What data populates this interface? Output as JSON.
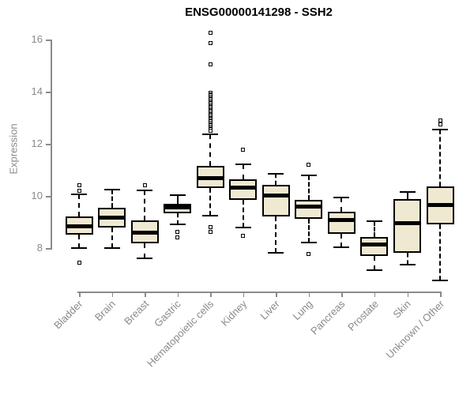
{
  "chart_data": {
    "type": "boxplot",
    "title": "ENSG00000141298 - SSH2",
    "ylabel": "Expression",
    "xlabel": "",
    "yticks": [
      8,
      10,
      12,
      14,
      16
    ],
    "ylim": [
      6.6,
      16.5
    ],
    "grid": false,
    "legend": "none",
    "categories": [
      "Bladder",
      "Brain",
      "Breast",
      "Gastric",
      "Hematopoietic cells",
      "Kidney",
      "Liver",
      "Lung",
      "Pancreas",
      "Prostate",
      "Skin",
      "Unknown / Other"
    ],
    "series": [
      {
        "name": "Bladder",
        "q1": 8.52,
        "median": 8.83,
        "q3": 9.2,
        "whisker_low": 8.0,
        "whisker_high": 10.06,
        "outliers": [
          10.4,
          10.2,
          7.45
        ]
      },
      {
        "name": "Brain",
        "q1": 8.8,
        "median": 9.18,
        "q3": 9.54,
        "whisker_low": 7.99,
        "whisker_high": 10.24,
        "outliers": []
      },
      {
        "name": "Breast",
        "q1": 8.17,
        "median": 8.58,
        "q3": 9.06,
        "whisker_low": 7.62,
        "whisker_high": 10.21,
        "outliers": [
          10.4
        ]
      },
      {
        "name": "Gastric",
        "q1": 9.33,
        "median": 9.56,
        "q3": 9.69,
        "whisker_low": 8.9,
        "whisker_high": 10.04,
        "outliers": [
          8.63,
          8.4
        ]
      },
      {
        "name": "Hematopoietic cells",
        "q1": 10.29,
        "median": 10.68,
        "q3": 11.15,
        "whisker_low": 9.23,
        "whisker_high": 12.37,
        "outliers": [
          16.25,
          15.85,
          15.05,
          13.95,
          13.9,
          13.85,
          13.8,
          13.75,
          13.7,
          13.65,
          13.6,
          13.55,
          13.5,
          13.45,
          13.4,
          13.35,
          13.3,
          13.25,
          13.2,
          13.15,
          13.1,
          13.05,
          13.0,
          12.95,
          12.9,
          12.85,
          12.8,
          12.75,
          12.7,
          12.65,
          12.6,
          12.55,
          12.5,
          8.8,
          8.63
        ]
      },
      {
        "name": "Kidney",
        "q1": 9.84,
        "median": 10.33,
        "q3": 10.65,
        "whisker_low": 8.78,
        "whisker_high": 11.22,
        "outliers": [
          11.76,
          8.48
        ]
      },
      {
        "name": "Liver",
        "q1": 9.2,
        "median": 10.02,
        "q3": 10.42,
        "whisker_low": 7.82,
        "whisker_high": 10.85,
        "outliers": []
      },
      {
        "name": "Lung",
        "q1": 9.11,
        "median": 9.58,
        "q3": 9.84,
        "whisker_low": 8.22,
        "whisker_high": 10.8,
        "outliers": [
          11.2,
          7.78
        ]
      },
      {
        "name": "Pancreas",
        "q1": 8.55,
        "median": 9.08,
        "q3": 9.38,
        "whisker_low": 8.04,
        "whisker_high": 9.94,
        "outliers": []
      },
      {
        "name": "Prostate",
        "q1": 7.69,
        "median": 8.14,
        "q3": 8.42,
        "whisker_low": 7.16,
        "whisker_high": 9.04,
        "outliers": []
      },
      {
        "name": "Skin",
        "q1": 7.82,
        "median": 8.95,
        "q3": 9.89,
        "whisker_low": 7.36,
        "whisker_high": 10.16,
        "outliers": []
      },
      {
        "name": "Unknown / Other",
        "q1": 8.91,
        "median": 9.66,
        "q3": 10.36,
        "whisker_low": 6.76,
        "whisker_high": 12.55,
        "outliers": [
          12.9,
          12.75
        ]
      }
    ],
    "colors": {
      "box_fill": "#F0E9D2",
      "box_line": "#000000",
      "median_line": "#000000",
      "axis": "#8a8a8a",
      "background": "#ffffff",
      "title": "#000000"
    }
  }
}
